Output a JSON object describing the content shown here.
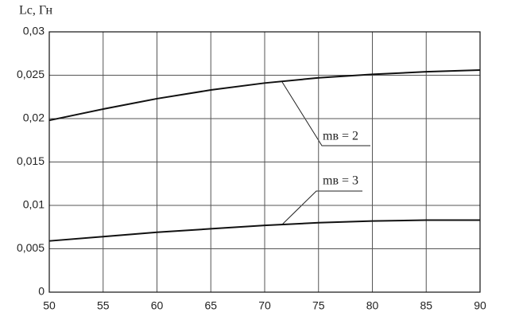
{
  "chart_data": {
    "type": "line",
    "ylabel": "Lc, Гн",
    "x": [
      50,
      55,
      60,
      65,
      70,
      75,
      80,
      85,
      90
    ],
    "series": [
      {
        "name": "mв = 2",
        "color": "#111111",
        "values": [
          0.0198,
          0.0211,
          0.0223,
          0.0233,
          0.0241,
          0.0247,
          0.0251,
          0.0254,
          0.0256
        ]
      },
      {
        "name": "mв = 3",
        "color": "#111111",
        "values": [
          0.0059,
          0.0064,
          0.0069,
          0.0073,
          0.0077,
          0.008,
          0.0082,
          0.0083,
          0.0083
        ]
      }
    ],
    "xlim": [
      50,
      90
    ],
    "xticks": [
      50,
      55,
      60,
      65,
      70,
      75,
      80,
      85,
      90
    ],
    "ylim": [
      0,
      0.03
    ],
    "yticks": [
      0,
      {
        "value": 0.005,
        "label": "0,005"
      },
      {
        "value": 0.01,
        "label": "0,01"
      },
      {
        "value": 0.015,
        "label": "0,015"
      },
      {
        "value": 0.02,
        "label": "0,02"
      },
      {
        "value": 0.025,
        "label": "0,025"
      },
      {
        "value": 0.03,
        "label": "0,03"
      }
    ],
    "grid": true
  }
}
